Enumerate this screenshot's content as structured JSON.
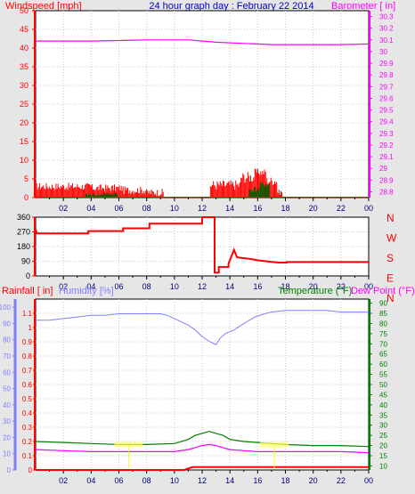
{
  "header": {
    "title": "24 hour graph day : February 22 2014",
    "left_label": "Windspeed [mph]",
    "right_label": "Barometer [ in]"
  },
  "colors": {
    "background": "#e6e6e6",
    "panel": "#ffffff",
    "grid": "#c8c8c8",
    "title": "#0000c0",
    "wind": "#ff0000",
    "gust": "#006000",
    "barometer": "#ff00ff",
    "direction": "#ff0000",
    "rain": "#ff0000",
    "humidity": "#8080ff",
    "temperature": "#008000",
    "dewpoint": "#ff00ff",
    "rain_axis": "#ff0000",
    "humidity_axis": "#8080ff",
    "x_ticks": "#000080"
  },
  "chart_data": [
    {
      "type": "bar",
      "panel": "wind_barometer",
      "ylabel": "Windspeed [mph]",
      "y2label": "Barometer [ in]",
      "ylim": [
        0,
        50
      ],
      "yticks": [
        0,
        5,
        10,
        15,
        20,
        25,
        30,
        35,
        40,
        45,
        50
      ],
      "y2lim": [
        28.75,
        30.35
      ],
      "y2ticks": [
        "28.8",
        "28.9",
        "29",
        "29.1",
        "29.2",
        "29.3",
        "29.4",
        "29.5",
        "29.6",
        "29.7",
        "29.8",
        "29.9",
        "30",
        "30.1",
        "30.2",
        "30.3"
      ],
      "xlim": [
        0,
        24
      ],
      "xticks": [
        "02",
        "04",
        "06",
        "08",
        "10",
        "12",
        "14",
        "16",
        "18",
        "20",
        "22",
        "00"
      ],
      "series": [
        {
          "name": "Windspeed [mph]",
          "kind": "bars",
          "segments": [
            {
              "x0": 0.0,
              "x1": 4.0,
              "level": 3.0,
              "amp": 1.0
            },
            {
              "x0": 4.0,
              "x1": 6.3,
              "level": 2.6,
              "amp": 1.0
            },
            {
              "x0": 6.3,
              "x1": 8.0,
              "level": 2.0,
              "amp": 1.0
            },
            {
              "x0": 8.0,
              "x1": 9.2,
              "level": 1.4,
              "amp": 1.0
            },
            {
              "x0": 12.6,
              "x1": 14.8,
              "level": 3.4,
              "amp": 1.4
            },
            {
              "x0": 14.8,
              "x1": 15.8,
              "level": 5.5,
              "amp": 1.5
            },
            {
              "x0": 15.8,
              "x1": 16.6,
              "level": 6.8,
              "amp": 1.0
            },
            {
              "x0": 16.6,
              "x1": 17.4,
              "level": 4.5,
              "amp": 1.2
            },
            {
              "x0": 17.4,
              "x1": 17.8,
              "level": 1.5,
              "amp": 0.7
            }
          ]
        },
        {
          "name": "Gust",
          "kind": "bars",
          "segments": [
            {
              "x0": 3.6,
              "x1": 4.8,
              "level": 0.7,
              "amp": 0.4
            },
            {
              "x0": 4.8,
              "x1": 5.9,
              "level": 1.0,
              "amp": 0.4
            },
            {
              "x0": 15.4,
              "x1": 16.2,
              "level": 2.2,
              "amp": 0.8
            },
            {
              "x0": 16.2,
              "x1": 16.9,
              "level": 3.5,
              "amp": 0.8
            }
          ]
        },
        {
          "name": "Barometer [ in]",
          "kind": "line",
          "x": [
            0,
            2,
            4,
            6,
            8,
            10,
            11,
            12,
            13,
            14,
            15,
            16,
            17,
            18,
            20,
            22,
            24
          ],
          "y": [
            30.09,
            30.09,
            30.09,
            30.095,
            30.1,
            30.1,
            30.1,
            30.09,
            30.08,
            30.075,
            30.07,
            30.065,
            30.06,
            30.06,
            30.06,
            30.06,
            30.065
          ]
        }
      ]
    },
    {
      "type": "line",
      "panel": "wind_direction",
      "ylim": [
        0,
        360
      ],
      "yticks": [
        0,
        90,
        180,
        270,
        360
      ],
      "y2ticks": [
        "N",
        "W",
        "S",
        "E",
        "N"
      ],
      "xlim": [
        0,
        24
      ],
      "xticks": [
        "02",
        "04",
        "06",
        "08",
        "10",
        "12",
        "14",
        "16",
        "18",
        "20",
        "22",
        "00"
      ],
      "series": [
        {
          "name": "Wind direction",
          "x": [
            0,
            0.1,
            3.8,
            3.8,
            6.3,
            6.3,
            8.2,
            8.2,
            12.0,
            12.0,
            12.9,
            12.9,
            13.2,
            13.2,
            13.9,
            13.9,
            14.3,
            14.5,
            14.8,
            15.4,
            16.1,
            16.8,
            17.5,
            18.1,
            18.1,
            24
          ],
          "y": [
            285,
            260,
            260,
            275,
            275,
            292,
            292,
            320,
            320,
            360,
            360,
            20,
            20,
            55,
            55,
            75,
            160,
            115,
            110,
            105,
            95,
            88,
            82,
            82,
            85,
            85
          ]
        }
      ]
    },
    {
      "type": "line",
      "panel": "rain_humidity_temp",
      "ylabel": "Rainfall [ in]",
      "y2label": "Temperature (°F)",
      "series_labels": [
        "Rainfall [ in]",
        "Humidity [%]",
        "Temperature (°F)",
        "Dew Point (°F)"
      ],
      "xlim": [
        0,
        24
      ],
      "xticks": [
        "02",
        "04",
        "06",
        "08",
        "10",
        "12",
        "14",
        "16",
        "18",
        "20",
        "22",
        "00"
      ],
      "rain_lim": [
        0,
        1.2
      ],
      "rain_ticks": [
        "0",
        "0.1",
        "0.2",
        "0.3",
        "0.4",
        "0.5",
        "0.6",
        "0.7",
        "0.8",
        "0.9",
        "1",
        "1.1"
      ],
      "humidity_lim": [
        0,
        105
      ],
      "humidity_ticks": [
        0,
        10,
        20,
        30,
        40,
        50,
        60,
        70,
        80,
        90,
        100
      ],
      "temp_lim": [
        8,
        92
      ],
      "temp_ticks": [
        10,
        15,
        20,
        25,
        30,
        35,
        40,
        45,
        50,
        55,
        60,
        65,
        70,
        75,
        80,
        85,
        90
      ],
      "series": [
        {
          "name": "Humidity [%]",
          "x": [
            0,
            1,
            2,
            3,
            4,
            5,
            6,
            7,
            8,
            9,
            9.5,
            10,
            10.5,
            11,
            11.5,
            12,
            12.5,
            13,
            13.3,
            13.7,
            14.3,
            15,
            15.8,
            16.5,
            17,
            18,
            19,
            20,
            21,
            22,
            23,
            24
          ],
          "y": [
            92,
            92,
            93,
            94,
            95,
            95,
            96,
            96,
            96,
            96,
            95,
            93,
            91,
            89,
            86,
            82,
            79,
            77,
            81,
            84,
            86,
            90,
            94,
            96,
            97,
            98,
            98,
            98,
            98,
            97,
            97,
            97
          ]
        },
        {
          "name": "Temperature (°F)",
          "x": [
            0,
            2,
            4,
            6,
            8,
            10,
            11,
            11.5,
            12,
            12.5,
            13,
            13.5,
            14,
            14.5,
            15,
            16,
            17,
            18,
            20,
            22,
            24
          ],
          "y": [
            22,
            21.5,
            21,
            20.5,
            20.5,
            21,
            23,
            25,
            26,
            27,
            26,
            25,
            23,
            22.5,
            22,
            21.5,
            21,
            20.5,
            20,
            20,
            19.5
          ]
        },
        {
          "name": "Dew Point (°F)",
          "x": [
            0,
            2,
            4,
            6,
            8,
            10,
            11,
            11.5,
            12,
            12.5,
            13,
            13.5,
            14,
            15,
            16,
            17,
            18,
            20,
            22,
            24
          ],
          "y": [
            18,
            17.5,
            17,
            17,
            17,
            17,
            18,
            19,
            20,
            20.5,
            20,
            19,
            18,
            17.5,
            17,
            17,
            17,
            17,
            17,
            16.5
          ]
        },
        {
          "name": "Rainfall [ in]",
          "x": [
            0,
            10.7,
            11.3,
            24
          ],
          "y": [
            0.0,
            0.0,
            0.02,
            0.02
          ]
        }
      ],
      "markers": [
        {
          "x": 6.7,
          "kind": "min"
        },
        {
          "x": 17.2,
          "kind": "max"
        }
      ]
    }
  ]
}
